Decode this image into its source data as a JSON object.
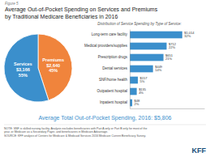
{
  "chart_data": [
    {
      "type": "pie",
      "title": "Average Out-of-Pocket Spending on Services and Premiums",
      "subtitle": "by Traditional Medicare Beneficiaries in 2016",
      "categories": [
        "Premiums",
        "Services"
      ],
      "values": [
        45,
        55
      ],
      "value_labels": [
        "45%",
        "55%"
      ],
      "amounts": [
        2640,
        3166
      ],
      "amount_labels": [
        "$2,640",
        "$3,166"
      ],
      "colors": [
        "#F0843C",
        "#3B8FCC"
      ],
      "data_labels": true,
      "annotations": [
        {
          "text": "Figure 5",
          "color": "#777777"
        },
        {
          "text": "Average Total Out-of-Pocket Spending, 2016: $5,806",
          "color": "#3B8FCC"
        },
        {
          "text": "NOTE: SNF is skilled nursing facility. Analysis excludes beneficiaries with Part A only or Part B only for most of the",
          "color": "#555555"
        },
        {
          "text": "year, or Medicare as a Secondary Payer, and beneficiaries in Medicare Advantage.",
          "color": "#555555"
        },
        {
          "text": "SOURCE: KFF analysis of Centers for Medicare & Medicaid Services 2016 Medicare Current Beneficiary Survey.",
          "color": "#555555"
        },
        {
          "text": "KFF",
          "color": "#1B4F7A"
        }
      ]
    },
    {
      "type": "bar",
      "orientation": "horizontal",
      "title": "Distribution of Service Spending by Type of Service:",
      "categories": [
        "Long-term care facility",
        "Medical providers/supplies",
        "Prescription drugs",
        "Dental services",
        "SNF/home health",
        "Outpatient hospital",
        "Inpatient hospital"
      ],
      "values": [
        1014,
        712,
        651,
        449,
        157,
        135,
        48
      ],
      "value_labels": [
        "$1,014",
        "$712",
        "$651",
        "$449",
        "$157",
        "$135",
        "$48"
      ],
      "shares": [
        32,
        22,
        21,
        14,
        5,
        4,
        2
      ],
      "share_labels": [
        "32%",
        "22%",
        "21%",
        "14%",
        "5%",
        "4%",
        "2%"
      ],
      "color": "#3B8FCC",
      "xlim": [
        0,
        1439.88
      ],
      "tick_labels": "y",
      "data_labels": true
    }
  ]
}
